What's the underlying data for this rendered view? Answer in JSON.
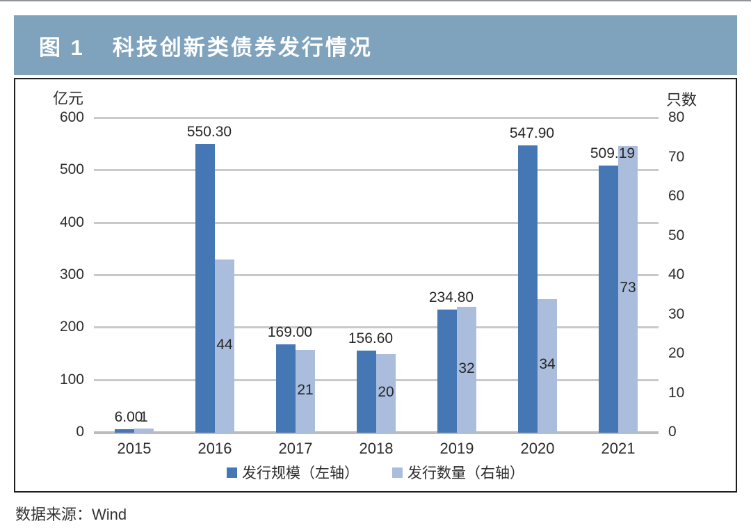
{
  "figure": {
    "title_prefix": "图 1",
    "title": "科技创新类债券发行情况",
    "source": "数据来源：Wind"
  },
  "colors": {
    "title_bar": "#7fa2bd",
    "scale_bar": "#4577b5",
    "count_bar": "#aabddd",
    "gridline": "#c9c9c9"
  },
  "chart_data": {
    "type": "bar",
    "title": "图 1 科技创新类债券发行情况",
    "categories": [
      "2015",
      "2016",
      "2017",
      "2018",
      "2019",
      "2020",
      "2021"
    ],
    "series": [
      {
        "name": "发行规模（左轴）",
        "axis": "left",
        "unit": "亿元",
        "color": "#4577b5",
        "values": [
          6.0,
          550.3,
          169.0,
          156.6,
          234.8,
          547.9,
          509.19
        ],
        "value_labels": [
          "6.00",
          "550.30",
          "169.00",
          "156.60",
          "234.80",
          "547.90",
          "509.19"
        ]
      },
      {
        "name": "发行数量（右轴）",
        "axis": "right",
        "unit": "只数",
        "color": "#aabddd",
        "values": [
          1,
          44,
          21,
          20,
          32,
          34,
          73
        ]
      }
    ],
    "left_axis": {
      "label": "亿元",
      "min": 0,
      "max": 600,
      "ticks": [
        600,
        500,
        400,
        300,
        200,
        100,
        0
      ]
    },
    "right_axis": {
      "label": "只数",
      "min": 0,
      "max": 80,
      "ticks": [
        80,
        70,
        60,
        50,
        40,
        30,
        20,
        10,
        0
      ]
    },
    "grid": true,
    "legend_position": "bottom"
  }
}
